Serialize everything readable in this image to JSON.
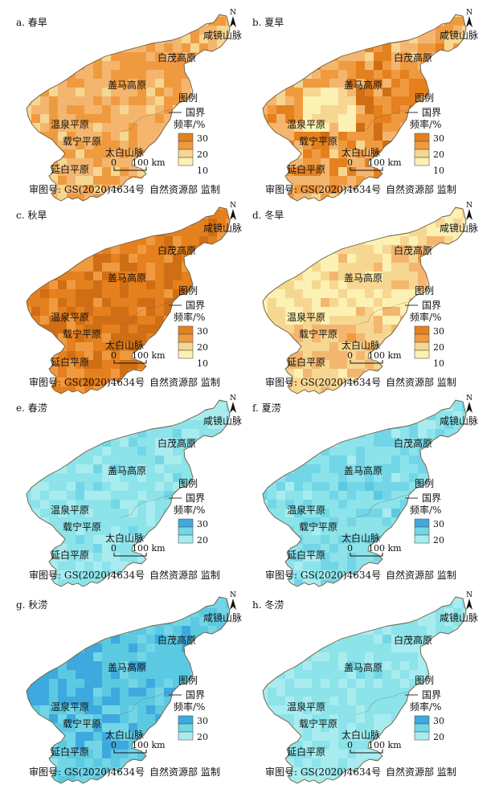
{
  "panels": [
    {
      "id": "a",
      "title": "a. 春旱",
      "kind": "drought",
      "legend_values": [
        "30",
        "20",
        "10"
      ]
    },
    {
      "id": "b",
      "title": "b. 夏旱",
      "kind": "drought",
      "legend_values": [
        "30",
        "20",
        "10"
      ]
    },
    {
      "id": "c",
      "title": "c. 秋旱",
      "kind": "drought",
      "legend_values": [
        "30",
        "20",
        "10"
      ]
    },
    {
      "id": "d",
      "title": "d. 冬旱",
      "kind": "drought",
      "legend_values": [
        "30",
        "20",
        "10"
      ]
    },
    {
      "id": "e",
      "title": "e. 春涝",
      "kind": "flood",
      "legend_values": [
        "30",
        "20"
      ]
    },
    {
      "id": "f",
      "title": "f. 夏涝",
      "kind": "flood",
      "legend_values": [
        "30",
        "20"
      ]
    },
    {
      "id": "g",
      "title": "g. 秋涝",
      "kind": "flood",
      "legend_values": [
        "30",
        "20"
      ]
    },
    {
      "id": "h",
      "title": "h. 冬涝",
      "kind": "flood",
      "legend_values": [
        "30",
        "20"
      ]
    }
  ],
  "common": {
    "north": "N",
    "legend_title": "图例",
    "border_label": "国界",
    "freq_label": "频率/%",
    "scale_zero": "0",
    "scale_text": "100 km",
    "map_review": "审图号: GS(2020)4634号",
    "authority": "自然资源部  监制",
    "place_names": {
      "xianjing": "咸镜山脉",
      "baimao": "白茂高原",
      "gaima": "盖马高原",
      "wenquan": "温泉平原",
      "zaining": "载宁平原",
      "taibai": "太白山脉",
      "yanbai": "延白平原"
    }
  },
  "colors": {
    "drought_scale": [
      "#fbf1b3",
      "#f6d792",
      "#f4b66f",
      "#f09a40",
      "#e5801e",
      "#cf6e14"
    ],
    "flood_scale": [
      "#c7f4f2",
      "#a9ecef",
      "#8ce3ea",
      "#73d6e6",
      "#5cc9e2",
      "#3ea9de"
    ],
    "border": "#6b5a3c"
  }
}
